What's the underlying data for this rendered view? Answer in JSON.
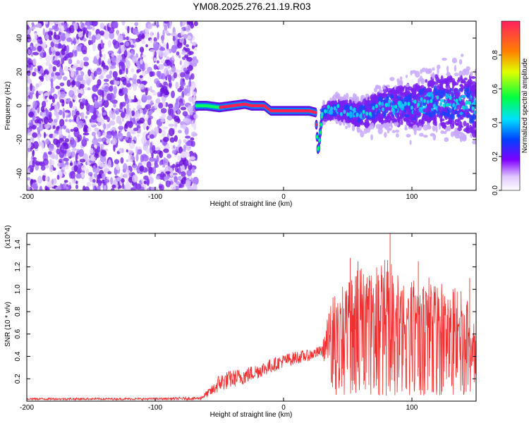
{
  "title": "YM08.2025.276.21.19.R03",
  "chart_data": [
    {
      "type": "heatmap",
      "title": "YM08.2025.276.21.19.R03",
      "xlabel": "Height of straight line (km)",
      "ylabel": "Frequency (Hz)",
      "xlim": [
        -200,
        150
      ],
      "ylim": [
        -50,
        50
      ],
      "x_ticks": [
        -200,
        -100,
        0,
        100
      ],
      "y_ticks": [
        -40,
        -20,
        0,
        20,
        40
      ],
      "colorbar": {
        "label": "Normalized spectral amplitude",
        "range": [
          0,
          1
        ],
        "ticks": [
          0.0,
          0.2,
          0.4,
          0.6,
          0.8
        ],
        "tick_labels": [
          "0.0",
          "0.2",
          "0.4",
          "0.6",
          "0.8"
        ]
      },
      "ridge": {
        "x": [
          -68,
          -60,
          -50,
          -40,
          -30,
          -25,
          -20,
          -15,
          -10,
          0,
          10,
          20,
          25,
          27,
          30,
          40,
          60,
          80,
          100,
          120,
          150
        ],
        "y": [
          0,
          0,
          -1,
          0,
          1,
          0,
          0,
          0,
          -3,
          -3,
          -3,
          -3,
          -4,
          -28,
          -5,
          -2,
          -5,
          0,
          0,
          3,
          0
        ]
      },
      "grid": false
    },
    {
      "type": "line",
      "xlabel": "Height of straight line (km)",
      "ylabel": "SNR (10 * v/v)",
      "y_scale_label": "(x10^4)",
      "xlim": [
        -200,
        150
      ],
      "ylim": [
        0,
        1.5
      ],
      "x_ticks": [
        -200,
        -100,
        0,
        100
      ],
      "y_ticks": [
        0.2,
        0.4,
        0.6,
        0.8,
        1.0,
        1.2,
        1.4
      ],
      "color": "#f03030",
      "envelope": {
        "x": [
          -200,
          -150,
          -100,
          -65,
          -55,
          -50,
          -40,
          -30,
          -20,
          -10,
          0,
          10,
          20,
          30,
          35,
          40,
          50,
          60,
          70,
          80,
          90,
          100,
          110,
          120,
          130,
          140,
          150
        ],
        "low": [
          0.01,
          0.01,
          0.01,
          0.01,
          0.05,
          0.08,
          0.12,
          0.15,
          0.2,
          0.25,
          0.3,
          0.33,
          0.36,
          0.4,
          0.25,
          0.05,
          0.05,
          0.05,
          0.05,
          0.05,
          0.05,
          0.05,
          0.05,
          0.05,
          0.05,
          0.05,
          0.1
        ],
        "high": [
          0.03,
          0.03,
          0.03,
          0.04,
          0.15,
          0.25,
          0.28,
          0.3,
          0.34,
          0.38,
          0.42,
          0.45,
          0.46,
          0.5,
          0.8,
          1.0,
          1.1,
          1.2,
          1.2,
          1.3,
          1.15,
          1.1,
          1.1,
          1.15,
          1.05,
          1.0,
          0.8
        ]
      },
      "peaks": [
        {
          "x": 52,
          "y": 1.28
        },
        {
          "x": 58,
          "y": 1.25
        },
        {
          "x": 83,
          "y": 1.5
        },
        {
          "x": 105,
          "y": 1.25
        },
        {
          "x": 145,
          "y": 1.1
        }
      ],
      "grid": false
    }
  ]
}
